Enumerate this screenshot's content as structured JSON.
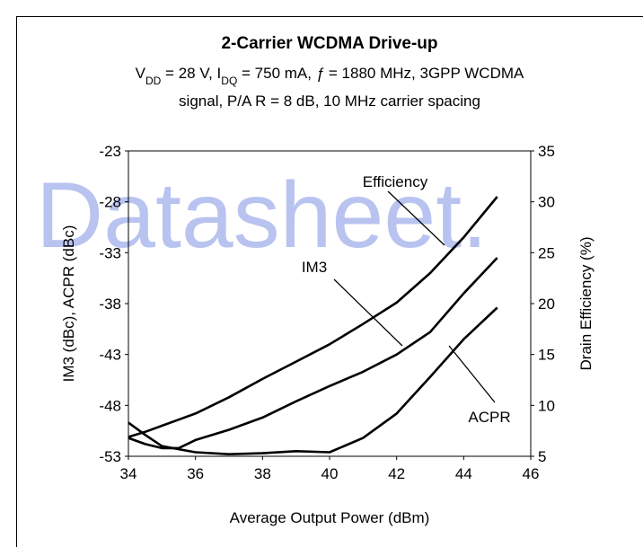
{
  "chart_data": {
    "type": "line",
    "watermark": "Datasheet.",
    "title": "2-Carrier WCDMA Drive-up",
    "subtitle_line1": [
      "V",
      "DD",
      " = 28 V, I",
      "DQ",
      " = 750 mA, ",
      "ƒ",
      " = 1880 MHz, 3GPP WCDMA"
    ],
    "subtitle_line2": "signal, P/A R = 8 dB, 10 MHz carrier spacing",
    "xlabel": "Average Output Power (dBm)",
    "ylabel": "IM3 (dBc), ACPR (dBc)",
    "y2label": "Drain Efficiency (%)",
    "x": [
      34,
      34.5,
      35,
      35.5,
      36,
      37,
      38,
      39,
      40,
      41,
      42,
      43,
      44,
      45
    ],
    "series": [
      {
        "name": "Efficiency",
        "color": "#000000",
        "axis": "y2",
        "values": [
          6.9,
          7.4,
          8.0,
          8.6,
          9.2,
          10.8,
          12.6,
          14.3,
          16.0,
          18.0,
          20.1,
          23.0,
          26.5,
          30.5
        ]
      },
      {
        "name": "IM3",
        "color": "#000000",
        "values": [
          -51.2,
          -51.8,
          -52.2,
          -52.2,
          -51.4,
          -50.4,
          -49.2,
          -47.6,
          -46.1,
          -44.7,
          -43.0,
          -40.8,
          -37.0,
          -33.5
        ]
      },
      {
        "name": "ACPR",
        "color": "#000000",
        "values": [
          -49.7,
          -50.9,
          -52.0,
          -52.3,
          -52.6,
          -52.8,
          -52.7,
          -52.5,
          -52.6,
          -51.2,
          -48.8,
          -45.2,
          -41.5,
          -38.4
        ]
      }
    ],
    "xlim": [
      34,
      46
    ],
    "xticks": [
      34,
      36,
      38,
      40,
      42,
      44,
      46
    ],
    "ylim": [
      -53,
      -23
    ],
    "yticks": [
      -53,
      -48,
      -43,
      -38,
      -33,
      -28,
      -23
    ],
    "y2lim": [
      5,
      35
    ],
    "y2ticks": [
      5,
      10,
      15,
      20,
      25,
      30,
      35
    ],
    "grid": false
  }
}
